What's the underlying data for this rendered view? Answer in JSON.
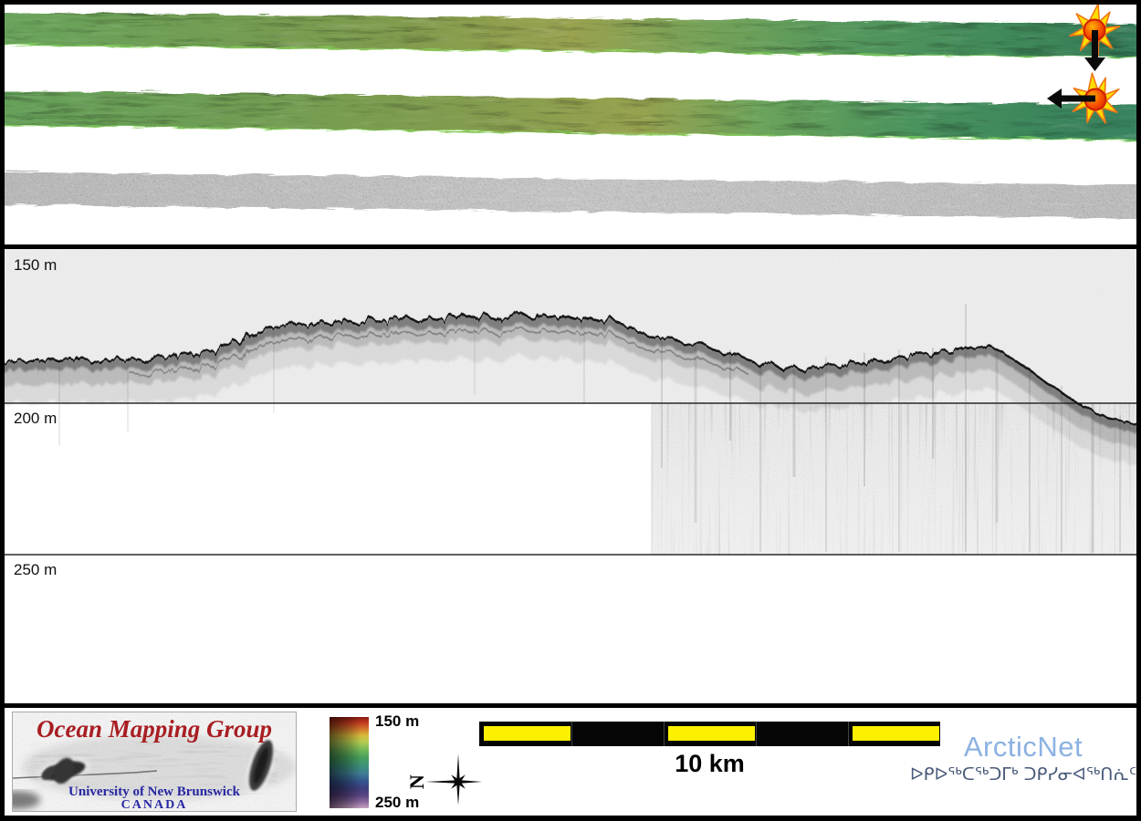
{
  "swath_panel": {
    "strips": [
      {
        "name": "multibeam-swath-1",
        "kind": "shaded bathymetry swath"
      },
      {
        "name": "multibeam-swath-2",
        "kind": "shaded bathymetry swath"
      },
      {
        "name": "sidescan-swath",
        "kind": "sidescan backscatter swath"
      }
    ],
    "markers": [
      {
        "icon": "starburst-icon",
        "arrow": "down-arrow-icon"
      },
      {
        "icon": "starburst-icon",
        "arrow": "left-arrow-icon"
      }
    ]
  },
  "seismic_panel": {
    "depth_labels": [
      "150 m",
      "200 m",
      "250 m"
    ],
    "profile": [
      [
        0,
        123
      ],
      [
        18,
        120
      ],
      [
        36,
        123
      ],
      [
        54,
        118
      ],
      [
        70,
        122
      ],
      [
        86,
        118
      ],
      [
        100,
        123
      ],
      [
        114,
        119
      ],
      [
        128,
        122
      ],
      [
        142,
        117
      ],
      [
        156,
        121
      ],
      [
        170,
        116
      ],
      [
        184,
        119
      ],
      [
        198,
        113
      ],
      [
        210,
        117
      ],
      [
        221,
        110
      ],
      [
        232,
        113
      ],
      [
        243,
        105
      ],
      [
        254,
        99
      ],
      [
        263,
        103
      ],
      [
        272,
        93
      ],
      [
        283,
        88
      ],
      [
        295,
        84
      ],
      [
        308,
        81
      ],
      [
        320,
        79
      ],
      [
        334,
        83
      ],
      [
        348,
        76
      ],
      [
        362,
        81
      ],
      [
        376,
        75
      ],
      [
        390,
        80
      ],
      [
        404,
        74
      ],
      [
        418,
        80
      ],
      [
        430,
        75
      ],
      [
        443,
        71
      ],
      [
        455,
        77
      ],
      [
        468,
        72
      ],
      [
        480,
        78
      ],
      [
        493,
        73
      ],
      [
        505,
        69
      ],
      [
        518,
        76
      ],
      [
        530,
        70
      ],
      [
        543,
        77
      ],
      [
        555,
        71
      ],
      [
        568,
        67
      ],
      [
        580,
        74
      ],
      [
        592,
        69
      ],
      [
        605,
        75
      ],
      [
        618,
        70
      ],
      [
        630,
        77
      ],
      [
        643,
        72
      ],
      [
        655,
        79
      ],
      [
        668,
        74
      ],
      [
        680,
        82
      ],
      [
        693,
        87
      ],
      [
        705,
        92
      ],
      [
        718,
        98
      ],
      [
        730,
        94
      ],
      [
        743,
        100
      ],
      [
        755,
        105
      ],
      [
        768,
        102
      ],
      [
        780,
        108
      ],
      [
        793,
        115
      ],
      [
        805,
        112
      ],
      [
        818,
        120
      ],
      [
        830,
        126
      ],
      [
        843,
        122
      ],
      [
        855,
        130
      ],
      [
        868,
        126
      ],
      [
        880,
        133
      ],
      [
        893,
        128
      ],
      [
        905,
        124
      ],
      [
        918,
        128
      ],
      [
        930,
        121
      ],
      [
        943,
        125
      ],
      [
        955,
        118
      ],
      [
        968,
        122
      ],
      [
        980,
        115
      ],
      [
        993,
        119
      ],
      [
        1005,
        112
      ],
      [
        1018,
        116
      ],
      [
        1030,
        109
      ],
      [
        1043,
        113
      ],
      [
        1055,
        105
      ],
      [
        1068,
        109
      ],
      [
        1080,
        103
      ],
      [
        1090,
        108
      ],
      [
        1100,
        114
      ],
      [
        1110,
        120
      ],
      [
        1121,
        128
      ],
      [
        1132,
        136
      ],
      [
        1145,
        145
      ],
      [
        1158,
        153
      ],
      [
        1170,
        161
      ],
      [
        1182,
        169
      ],
      [
        1195,
        176
      ],
      [
        1208,
        181
      ],
      [
        1220,
        185
      ],
      [
        1235,
        188
      ],
      [
        1250,
        191
      ]
    ]
  },
  "footer": {
    "omg": {
      "title": "Ocean Mapping Group",
      "university": "University of New Brunswick",
      "country": "CANADA"
    },
    "depth_scale": {
      "top": "150 m",
      "bottom": "250 m"
    },
    "north_label": "N",
    "scalebar_label": "10 km",
    "arcticnet": {
      "name": "ArcticNet",
      "inuktitut": "ᐅᑭᐅᖅᑕᖅᑐᒥᒃ ᑐᑭᓯᓂᐊᖅᑎᕇᑦ"
    }
  },
  "colors": {
    "swath_green": "#55975c",
    "swath_olive": "#99a24f",
    "sidescan_gray": "#c8c8c8",
    "seismic_bg": "#ededed",
    "scalebar_yellow": "#fdf000",
    "sun_yellow": "#ffdf00",
    "sun_orange": "#f07818",
    "omg_red": "#a81e22",
    "omg_blue": "#2727a3",
    "arcticnet_blue": "#8cb2e2",
    "inuktitut_blue": "#4a5a7a"
  }
}
